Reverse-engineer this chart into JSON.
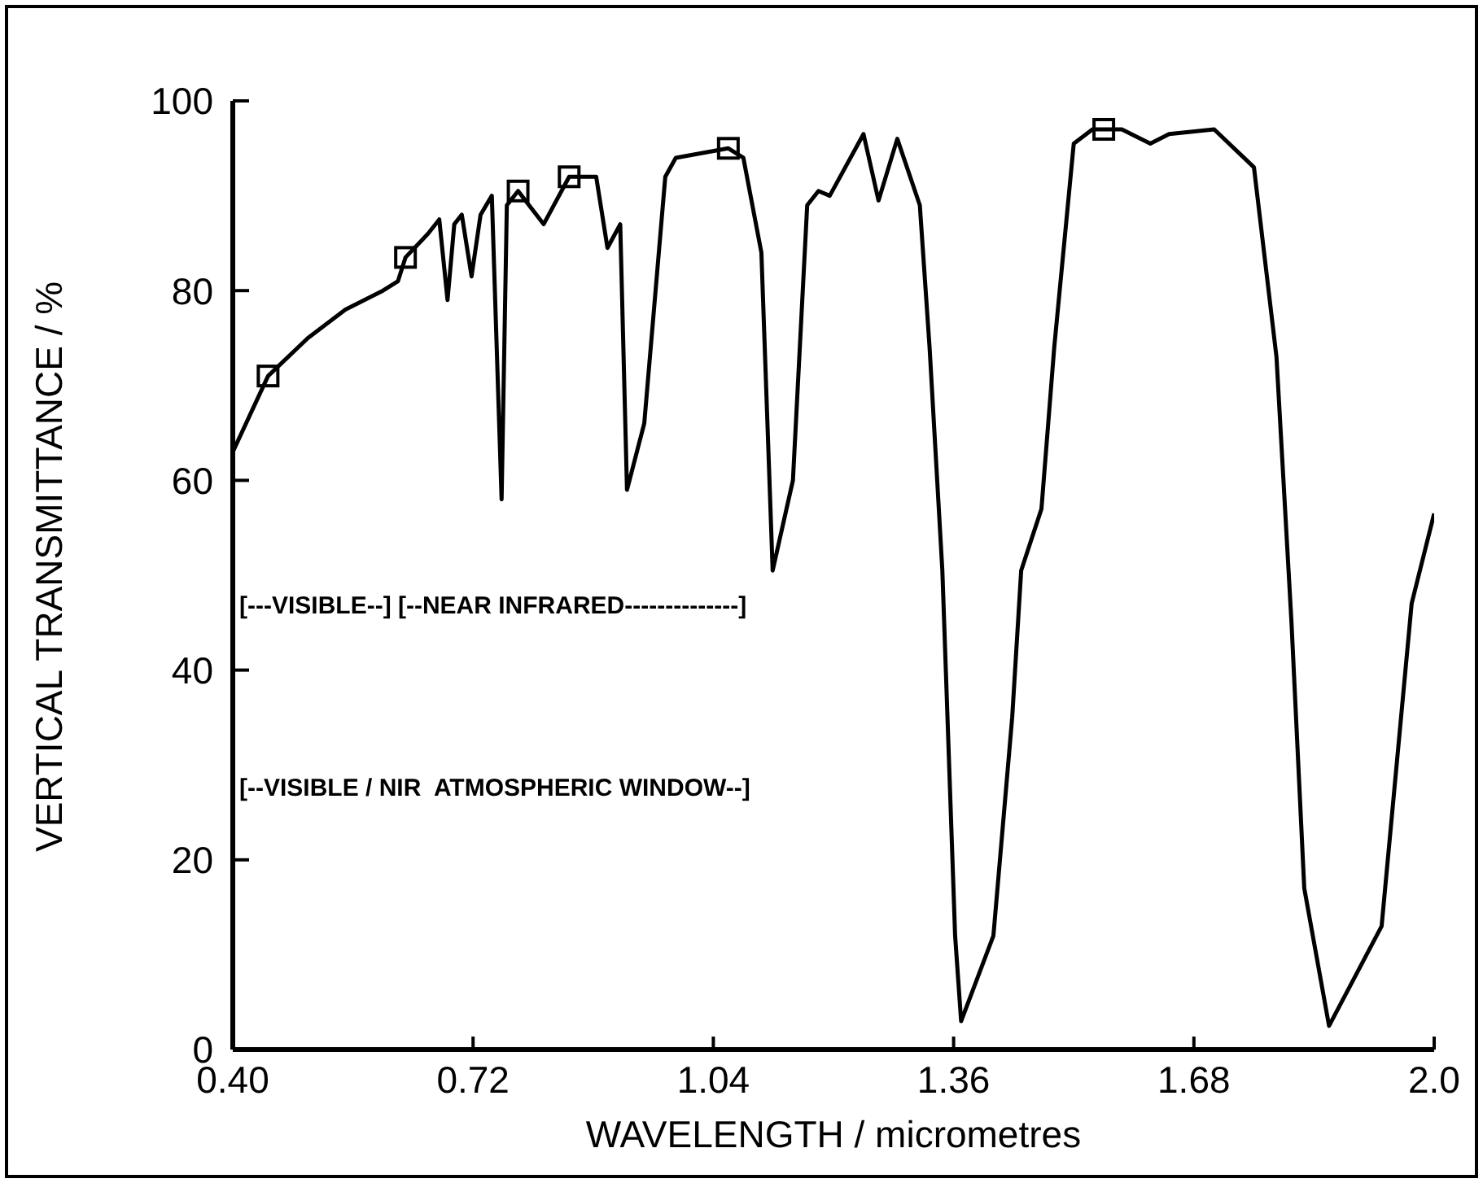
{
  "chart_data": {
    "type": "line",
    "xlabel": "WAVELENGTH / micrometres",
    "ylabel": "VERTICAL TRANSMITTANCE / %",
    "xlim": [
      0.4,
      2.0
    ],
    "xticks": [
      {
        "value": 0.4,
        "label": "0.40"
      },
      {
        "value": 0.72,
        "label": "0.72"
      },
      {
        "value": 1.04,
        "label": "1.04"
      },
      {
        "value": 1.36,
        "label": "1.36"
      },
      {
        "value": 1.68,
        "label": "1.68"
      },
      {
        "value": 2.0,
        "label": "2.0"
      }
    ],
    "ylim": [
      0,
      100
    ],
    "yticks": [
      0,
      20,
      40,
      60,
      80,
      100
    ],
    "grid": false,
    "series": [
      {
        "color": "#000000",
        "marker": "none",
        "line_style": "solid",
        "x": [
          0.4,
          0.447,
          0.5,
          0.55,
          0.6,
          0.62,
          0.63,
          0.66,
          0.675,
          0.686,
          0.695,
          0.705,
          0.718,
          0.73,
          0.745,
          0.758,
          0.765,
          0.78,
          0.814,
          0.848,
          0.884,
          0.899,
          0.916,
          0.925,
          0.948,
          0.976,
          0.99,
          1.06,
          1.08,
          1.104,
          1.119,
          1.146,
          1.165,
          1.18,
          1.195,
          1.24,
          1.26,
          1.285,
          1.315,
          1.328,
          1.345,
          1.362,
          1.37,
          1.413,
          1.438,
          1.45,
          1.477,
          1.494,
          1.52,
          1.545,
          1.584,
          1.622,
          1.647,
          1.707,
          1.76,
          1.79,
          1.81,
          1.827,
          1.86,
          1.93,
          1.97,
          2.0
        ],
        "values": [
          63,
          71,
          75,
          78,
          80,
          81,
          83.5,
          86,
          87.5,
          79,
          87,
          88,
          81.5,
          88,
          90,
          58,
          89,
          90.5,
          87,
          92,
          92,
          84.5,
          87,
          59,
          66,
          92,
          94,
          95,
          94,
          84,
          50.5,
          60,
          89,
          90.5,
          90,
          96.5,
          89.5,
          96,
          89,
          74,
          50.5,
          12,
          3,
          12,
          35,
          50.5,
          57,
          74,
          95.5,
          97,
          97,
          95.5,
          96.5,
          97,
          93,
          73,
          45,
          17,
          2.5,
          13,
          47,
          56.5
        ]
      },
      {
        "type": "scatter",
        "color": "#000000",
        "marker": "square",
        "x": [
          0.447,
          0.63,
          0.78,
          0.848,
          1.06,
          1.56
        ],
        "values": [
          71,
          83.5,
          90.5,
          92,
          95,
          97
        ]
      }
    ],
    "annotations": [
      "[---VISIBLE--] [--NEAR INFRARED--------------]",
      "[--VISIBLE / NIR  ATMOSPHERIC WINDOW--]"
    ]
  }
}
